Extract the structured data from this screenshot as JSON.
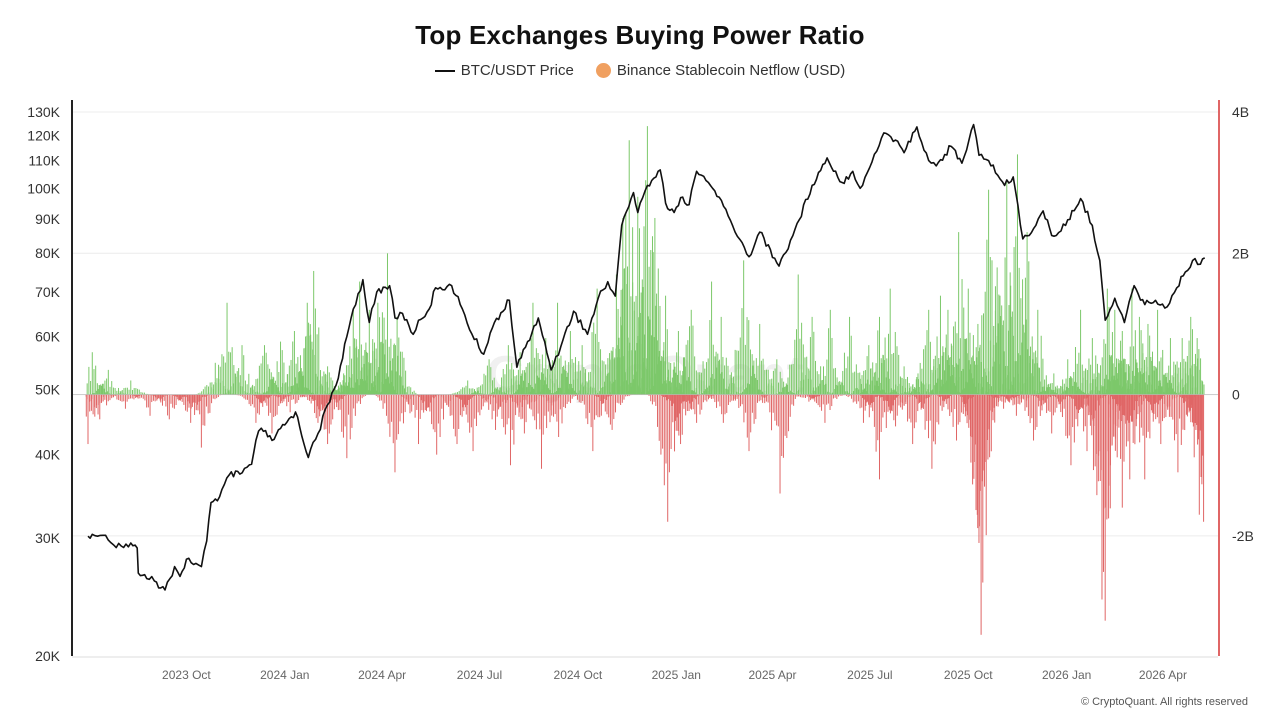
{
  "chart_data": {
    "type": "bar+line",
    "title": "Top Exchanges Buying Power Ratio",
    "legend": [
      {
        "name": "BTC/USDT Price",
        "marker": "line",
        "color": "#111111"
      },
      {
        "name": "Binance Stablecoin Netflow (USD)",
        "marker": "dot",
        "color": "#f0a060"
      }
    ],
    "left_axis": {
      "scale": "log",
      "range": [
        20000,
        130000
      ],
      "ticks": [
        20000,
        30000,
        40000,
        50000,
        60000,
        70000,
        80000,
        90000,
        100000,
        110000,
        120000,
        130000
      ],
      "tick_labels": [
        "20K",
        "30K",
        "40K",
        "50K",
        "60K",
        "70K",
        "80K",
        "90K",
        "100K",
        "110K",
        "120K",
        "130K"
      ]
    },
    "right_axis": {
      "scale": "linear",
      "range": [
        -3700000000,
        4000000000
      ],
      "ticks": [
        4000000000,
        2000000000,
        0,
        -2000000000
      ],
      "tick_labels": [
        "4B",
        "2B",
        "0",
        "-2B"
      ],
      "color": "#e06666"
    },
    "x_axis": {
      "range": [
        "2023-07-01",
        "2026-05-15"
      ],
      "ticks": [
        "2023-10-01",
        "2024-01-01",
        "2024-04-01",
        "2024-07-01",
        "2024-10-01",
        "2025-01-01",
        "2025-04-01",
        "2025-07-01",
        "2025-10-01",
        "2026-01-01",
        "2026-04-01"
      ],
      "tick_labels": [
        "2023 Oct",
        "2024 Jan",
        "2024 Apr",
        "2024 Jul",
        "2024 Oct",
        "2025 Jan",
        "2025 Apr",
        "2025 Jul",
        "2025 Oct",
        "2026 Jan",
        "2026 Apr"
      ]
    },
    "grid": "horizontal",
    "colors": {
      "positive": "#7cc86a",
      "negative": "#e06666",
      "price": "#111111"
    },
    "price_series": {
      "name": "BTC/USDT Price",
      "unit": "USD",
      "points": [
        [
          "2023-07-01",
          30200
        ],
        [
          "2023-07-05",
          30400
        ],
        [
          "2023-07-10",
          30200
        ],
        [
          "2023-07-15",
          30300
        ],
        [
          "2023-07-20",
          29800
        ],
        [
          "2023-07-25",
          29300
        ],
        [
          "2023-08-01",
          29200
        ],
        [
          "2023-08-10",
          29500
        ],
        [
          "2023-08-16",
          29000
        ],
        [
          "2023-08-17",
          26600
        ],
        [
          "2023-08-25",
          26100
        ],
        [
          "2023-09-01",
          25900
        ],
        [
          "2023-09-11",
          25100
        ],
        [
          "2023-09-20",
          27200
        ],
        [
          "2023-09-25",
          26300
        ],
        [
          "2023-10-01",
          27900
        ],
        [
          "2023-10-10",
          27500
        ],
        [
          "2023-10-15",
          27200
        ],
        [
          "2023-10-20",
          29700
        ],
        [
          "2023-10-24",
          33900
        ],
        [
          "2023-11-01",
          34600
        ],
        [
          "2023-11-10",
          37300
        ],
        [
          "2023-11-20",
          37400
        ],
        [
          "2023-12-01",
          38700
        ],
        [
          "2023-12-05",
          42000
        ],
        [
          "2023-12-10",
          43800
        ],
        [
          "2023-12-20",
          42000
        ],
        [
          "2024-01-01",
          44300
        ],
        [
          "2024-01-11",
          46300
        ],
        [
          "2024-01-23",
          39600
        ],
        [
          "2024-02-01",
          43000
        ],
        [
          "2024-02-10",
          47500
        ],
        [
          "2024-02-20",
          52000
        ],
        [
          "2024-02-28",
          60000
        ],
        [
          "2024-03-05",
          66000
        ],
        [
          "2024-03-14",
          73000
        ],
        [
          "2024-03-20",
          63000
        ],
        [
          "2024-03-27",
          70000
        ],
        [
          "2024-04-08",
          71500
        ],
        [
          "2024-04-13",
          64000
        ],
        [
          "2024-04-20",
          65000
        ],
        [
          "2024-04-30",
          60500
        ],
        [
          "2024-05-05",
          63500
        ],
        [
          "2024-05-15",
          66000
        ],
        [
          "2024-05-21",
          71000
        ],
        [
          "2024-06-05",
          71500
        ],
        [
          "2024-06-15",
          66000
        ],
        [
          "2024-06-24",
          60500
        ],
        [
          "2024-07-05",
          56500
        ],
        [
          "2024-07-15",
          63000
        ],
        [
          "2024-07-29",
          68000
        ],
        [
          "2024-08-05",
          54000
        ],
        [
          "2024-08-15",
          59000
        ],
        [
          "2024-08-25",
          64000
        ],
        [
          "2024-09-06",
          53500
        ],
        [
          "2024-09-15",
          58000
        ],
        [
          "2024-09-27",
          65500
        ],
        [
          "2024-10-10",
          60500
        ],
        [
          "2024-10-20",
          68500
        ],
        [
          "2024-10-29",
          72500
        ],
        [
          "2024-11-05",
          69000
        ],
        [
          "2024-11-11",
          88000
        ],
        [
          "2024-11-22",
          98500
        ],
        [
          "2024-11-26",
          92000
        ],
        [
          "2024-12-05",
          101000
        ],
        [
          "2024-12-17",
          106500
        ],
        [
          "2024-12-22",
          95000
        ],
        [
          "2024-12-30",
          92000
        ],
        [
          "2025-01-07",
          97000
        ],
        [
          "2025-01-13",
          94500
        ],
        [
          "2025-01-20",
          106000
        ],
        [
          "2025-01-31",
          102000
        ],
        [
          "2025-02-10",
          97000
        ],
        [
          "2025-02-25",
          86000
        ],
        [
          "2025-03-10",
          79000
        ],
        [
          "2025-03-20",
          86000
        ],
        [
          "2025-04-07",
          76500
        ],
        [
          "2025-04-20",
          85000
        ],
        [
          "2025-05-08",
          101000
        ],
        [
          "2025-05-22",
          111000
        ],
        [
          "2025-06-05",
          102000
        ],
        [
          "2025-06-15",
          106000
        ],
        [
          "2025-06-22",
          100000
        ],
        [
          "2025-07-03",
          109500
        ],
        [
          "2025-07-14",
          121000
        ],
        [
          "2025-07-25",
          118000
        ],
        [
          "2025-08-02",
          113000
        ],
        [
          "2025-08-14",
          123500
        ],
        [
          "2025-08-25",
          110000
        ],
        [
          "2025-09-01",
          108000
        ],
        [
          "2025-09-15",
          115500
        ],
        [
          "2025-09-25",
          109000
        ],
        [
          "2025-10-06",
          124500
        ],
        [
          "2025-10-11",
          112000
        ],
        [
          "2025-10-20",
          110000
        ],
        [
          "2025-11-04",
          101000
        ],
        [
          "2025-11-12",
          104000
        ],
        [
          "2025-11-21",
          84000
        ],
        [
          "2025-12-01",
          87000
        ],
        [
          "2025-12-10",
          92500
        ],
        [
          "2025-12-18",
          85000
        ],
        [
          "2025-12-31",
          88000
        ],
        [
          "2026-01-14",
          96500
        ],
        [
          "2026-01-25",
          88000
        ],
        [
          "2026-02-01",
          78000
        ],
        [
          "2026-02-06",
          63500
        ],
        [
          "2026-02-15",
          68500
        ],
        [
          "2026-02-24",
          63000
        ],
        [
          "2026-03-05",
          71500
        ],
        [
          "2026-03-15",
          67000
        ],
        [
          "2026-03-25",
          68000
        ],
        [
          "2026-04-05",
          66500
        ],
        [
          "2026-04-14",
          71000
        ],
        [
          "2026-04-22",
          75000
        ],
        [
          "2026-05-01",
          78500
        ],
        [
          "2026-05-06",
          77000
        ],
        [
          "2026-05-10",
          78700
        ]
      ]
    },
    "netflow_series": {
      "name": "Binance Stablecoin Netflow (USD)",
      "unit": "USD",
      "positive_peaks": [
        [
          "2023-07-05",
          600000000
        ],
        [
          "2023-07-20",
          350000000
        ],
        [
          "2023-08-10",
          200000000
        ],
        [
          "2023-10-28",
          450000000
        ],
        [
          "2023-11-08",
          1300000000
        ],
        [
          "2023-11-22",
          700000000
        ],
        [
          "2023-12-13",
          700000000
        ],
        [
          "2023-12-28",
          750000000
        ],
        [
          "2024-01-10",
          900000000
        ],
        [
          "2024-01-22",
          1300000000
        ],
        [
          "2024-01-28",
          1750000000
        ],
        [
          "2024-02-10",
          400000000
        ],
        [
          "2024-02-25",
          300000000
        ],
        [
          "2024-03-05",
          1200000000
        ],
        [
          "2024-03-11",
          1600000000
        ],
        [
          "2024-03-20",
          1200000000
        ],
        [
          "2024-03-28",
          1300000000
        ],
        [
          "2024-04-06",
          2000000000
        ],
        [
          "2024-04-15",
          1100000000
        ],
        [
          "2024-06-20",
          200000000
        ],
        [
          "2024-07-10",
          500000000
        ],
        [
          "2024-07-28",
          700000000
        ],
        [
          "2024-08-08",
          600000000
        ],
        [
          "2024-08-20",
          1300000000
        ],
        [
          "2024-09-01",
          800000000
        ],
        [
          "2024-09-12",
          1300000000
        ],
        [
          "2024-09-24",
          900000000
        ],
        [
          "2024-10-05",
          700000000
        ],
        [
          "2024-10-19",
          1500000000
        ],
        [
          "2024-11-06",
          1700000000
        ],
        [
          "2024-11-12",
          2500000000
        ],
        [
          "2024-11-18",
          3600000000
        ],
        [
          "2024-11-26",
          2800000000
        ],
        [
          "2024-12-05",
          3800000000
        ],
        [
          "2024-12-12",
          2500000000
        ],
        [
          "2024-12-22",
          1400000000
        ],
        [
          "2025-01-03",
          900000000
        ],
        [
          "2025-01-15",
          1200000000
        ],
        [
          "2025-02-03",
          1600000000
        ],
        [
          "2025-02-12",
          1100000000
        ],
        [
          "2025-03-05",
          1900000000
        ],
        [
          "2025-03-20",
          1000000000
        ],
        [
          "2025-04-05",
          500000000
        ],
        [
          "2025-04-25",
          1700000000
        ],
        [
          "2025-05-08",
          1100000000
        ],
        [
          "2025-05-25",
          1200000000
        ],
        [
          "2025-06-12",
          1100000000
        ],
        [
          "2025-06-30",
          700000000
        ],
        [
          "2025-07-10",
          1100000000
        ],
        [
          "2025-07-20",
          1500000000
        ],
        [
          "2025-08-02",
          400000000
        ],
        [
          "2025-08-15",
          300000000
        ],
        [
          "2025-08-25",
          1200000000
        ],
        [
          "2025-09-05",
          1400000000
        ],
        [
          "2025-09-12",
          1200000000
        ],
        [
          "2025-09-22",
          2300000000
        ],
        [
          "2025-10-01",
          1500000000
        ],
        [
          "2025-10-10",
          1000000000
        ],
        [
          "2025-10-20",
          2900000000
        ],
        [
          "2025-10-28",
          1800000000
        ],
        [
          "2025-11-06",
          3000000000
        ],
        [
          "2025-11-16",
          3400000000
        ],
        [
          "2025-11-25",
          2300000000
        ],
        [
          "2025-12-05",
          1200000000
        ],
        [
          "2025-12-20",
          300000000
        ],
        [
          "2026-01-02",
          500000000
        ],
        [
          "2026-01-14",
          1200000000
        ],
        [
          "2026-01-25",
          800000000
        ],
        [
          "2026-02-08",
          1500000000
        ],
        [
          "2026-02-15",
          1200000000
        ],
        [
          "2026-02-22",
          900000000
        ],
        [
          "2026-03-03",
          1500000000
        ],
        [
          "2026-03-10",
          1100000000
        ],
        [
          "2026-03-18",
          1000000000
        ],
        [
          "2026-03-27",
          1200000000
        ],
        [
          "2026-04-08",
          800000000
        ],
        [
          "2026-04-19",
          800000000
        ],
        [
          "2026-04-27",
          1100000000
        ],
        [
          "2026-05-03",
          800000000
        ]
      ],
      "negative_peaks": [
        [
          "2023-07-01",
          -700000000
        ],
        [
          "2023-07-12",
          -350000000
        ],
        [
          "2023-08-05",
          -200000000
        ],
        [
          "2023-08-28",
          -300000000
        ],
        [
          "2023-09-15",
          -350000000
        ],
        [
          "2023-10-05",
          -400000000
        ],
        [
          "2023-10-15",
          -750000000
        ],
        [
          "2023-12-05",
          -400000000
        ],
        [
          "2023-12-20",
          -550000000
        ],
        [
          "2024-01-06",
          -250000000
        ],
        [
          "2024-02-01",
          -400000000
        ],
        [
          "2024-02-10",
          -700000000
        ],
        [
          "2024-02-28",
          -900000000
        ],
        [
          "2024-04-13",
          -1100000000
        ],
        [
          "2024-05-05",
          -700000000
        ],
        [
          "2024-05-22",
          -850000000
        ],
        [
          "2024-06-10",
          -700000000
        ],
        [
          "2024-06-25",
          -800000000
        ],
        [
          "2024-07-16",
          -500000000
        ],
        [
          "2024-07-30",
          -1000000000
        ],
        [
          "2024-08-12",
          -550000000
        ],
        [
          "2024-08-28",
          -1050000000
        ],
        [
          "2024-09-13",
          -600000000
        ],
        [
          "2024-10-15",
          -800000000
        ],
        [
          "2024-11-02",
          -500000000
        ],
        [
          "2024-12-24",
          -1800000000
        ],
        [
          "2025-01-05",
          -700000000
        ],
        [
          "2025-01-20",
          -400000000
        ],
        [
          "2025-02-14",
          -400000000
        ],
        [
          "2025-03-10",
          -800000000
        ],
        [
          "2025-04-08",
          -1400000000
        ],
        [
          "2025-05-05",
          -100000000
        ],
        [
          "2025-05-20",
          -400000000
        ],
        [
          "2025-06-25",
          -400000000
        ],
        [
          "2025-07-10",
          -1200000000
        ],
        [
          "2025-07-25",
          -450000000
        ],
        [
          "2025-08-10",
          -700000000
        ],
        [
          "2025-08-28",
          -1050000000
        ],
        [
          "2025-09-20",
          -650000000
        ],
        [
          "2025-10-11",
          -2100000000
        ],
        [
          "2025-10-13",
          -3400000000
        ],
        [
          "2025-11-03",
          -200000000
        ],
        [
          "2025-11-15",
          -300000000
        ],
        [
          "2025-12-01",
          -650000000
        ],
        [
          "2025-12-18",
          -550000000
        ],
        [
          "2026-01-05",
          -1000000000
        ],
        [
          "2026-01-20",
          -800000000
        ],
        [
          "2026-02-03",
          -2900000000
        ],
        [
          "2026-02-06",
          -3200000000
        ],
        [
          "2026-02-22",
          -1600000000
        ],
        [
          "2026-03-01",
          -1200000000
        ],
        [
          "2026-03-15",
          -1200000000
        ],
        [
          "2026-03-30",
          -700000000
        ],
        [
          "2026-04-15",
          -1100000000
        ],
        [
          "2026-05-05",
          -1700000000
        ],
        [
          "2026-05-09",
          -1800000000
        ]
      ]
    },
    "watermark": "CryptoQuant"
  },
  "footer": {
    "copyright": "© CryptoQuant. All rights reserved"
  }
}
